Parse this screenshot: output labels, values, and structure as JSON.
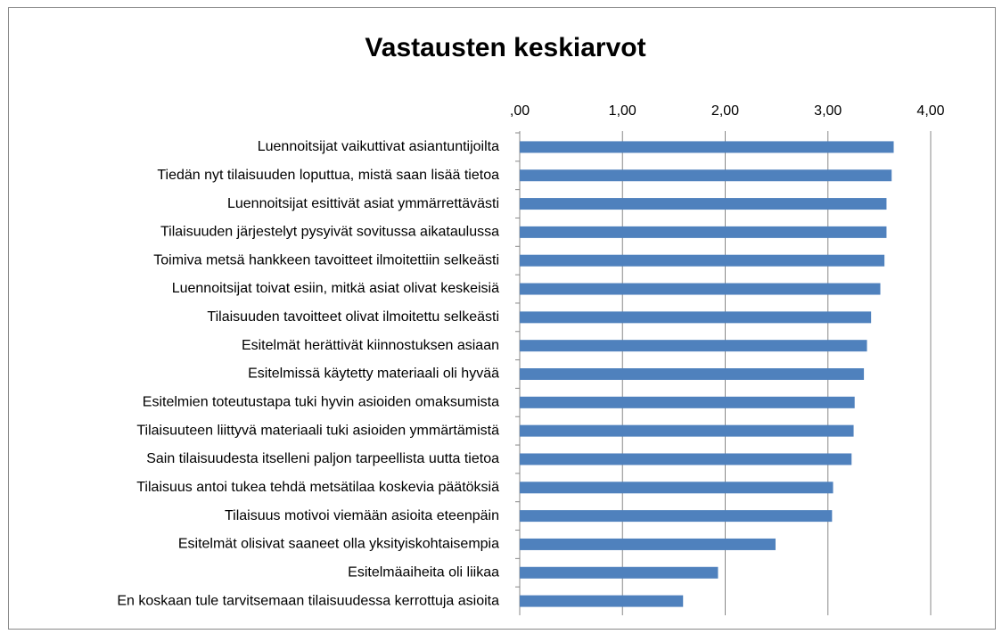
{
  "chart_data": {
    "type": "barh",
    "title": "Vastausten keskiarvot",
    "categories": [
      "Luennoitsijat vaikuttivat asiantuntijoilta",
      "Tiedän nyt tilaisuuden loputtua, mistä saan lisää tietoa",
      "Luennoitsijat esittivät asiat ymmärrettävästi",
      "Tilaisuuden järjestelyt pysyivät sovitussa aikataulussa",
      "Toimiva metsä hankkeen tavoitteet ilmoitettiin selkeästi",
      "Luennoitsijat toivat esiin, mitkä asiat olivat keskeisiä",
      "Tilaisuuden tavoitteet olivat ilmoitettu selkeästi",
      "Esitelmät herättivät kiinnostuksen asiaan",
      "Esitelmissä käytetty materiaali oli hyvää",
      "Esitelmien toteutustapa tuki hyvin asioiden omaksumista",
      "Tilaisuuteen liittyvä materiaali tuki asioiden ymmärtämistä",
      "Sain tilaisuudesta itselleni paljon tarpeellista uutta tietoa",
      "Tilaisuus antoi tukea tehdä metsätilaa koskevia päätöksiä",
      "Tilaisuus motivoi viemään asioita eteenpäin",
      "Esitelmät olisivat saaneet olla yksityiskohtaisempia",
      "Esitelmäaiheita oli liikaa",
      "En koskaan tule tarvitsemaan tilaisuudessa kerrottuja asioita"
    ],
    "values": [
      3.64,
      3.62,
      3.57,
      3.57,
      3.55,
      3.51,
      3.42,
      3.38,
      3.35,
      3.26,
      3.25,
      3.23,
      3.05,
      3.04,
      2.49,
      1.93,
      1.59
    ],
    "color": "#4f81bd",
    "xlim": [
      0,
      4
    ],
    "xticks": [
      {
        "value": 0,
        "label": ",00"
      },
      {
        "value": 1,
        "label": "1,00"
      },
      {
        "value": 2,
        "label": "2,00"
      },
      {
        "value": 3,
        "label": "3,00"
      },
      {
        "value": 4,
        "label": "4,00"
      }
    ],
    "grid": true
  }
}
